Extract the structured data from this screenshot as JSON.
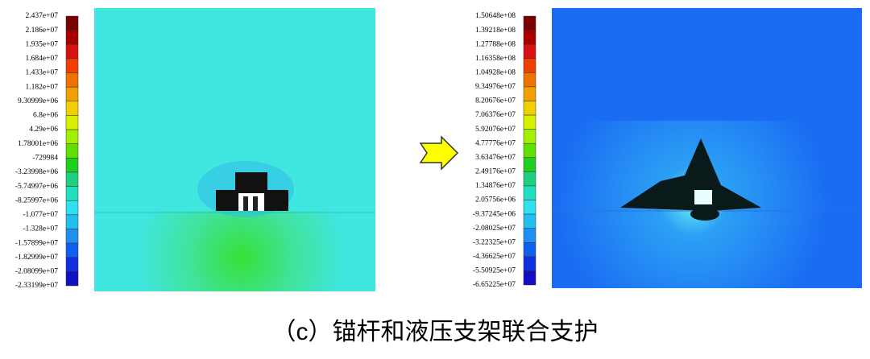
{
  "left_colorbar": {
    "labels": [
      "2.437e+07",
      "2.186e+07",
      "1.935e+07",
      "1.684e+07",
      "1.433e+07",
      "1.182e+07",
      "9.30999e+06",
      "6.8e+06",
      "4.29e+06",
      "1.78001e+06",
      "-729984",
      "-3.23998e+06",
      "-5.74997e+06",
      "-8.25997e+06",
      "-1.077e+07",
      "-1.328e+07",
      "-1.57899e+07",
      "-1.82999e+07",
      "-2.08099e+07",
      "-2.33199e+07"
    ]
  },
  "right_colorbar": {
    "labels": [
      "1.50648e+08",
      "1.39218e+08",
      "1.27788e+08",
      "1.16358e+08",
      "1.04928e+08",
      "9.34976e+07",
      "8.20676e+07",
      "7.06376e+07",
      "5.92076e+07",
      "4.77776e+07",
      "3.63476e+07",
      "2.49176e+07",
      "1.34876e+07",
      "2.05756e+06",
      "-9.37245e+06",
      "-2.08025e+07",
      "-3.22325e+07",
      "-4.36625e+07",
      "-5.50925e+07",
      "-6.65225e+07"
    ]
  },
  "caption": "（c）锚杆和液压支架联合支护"
}
